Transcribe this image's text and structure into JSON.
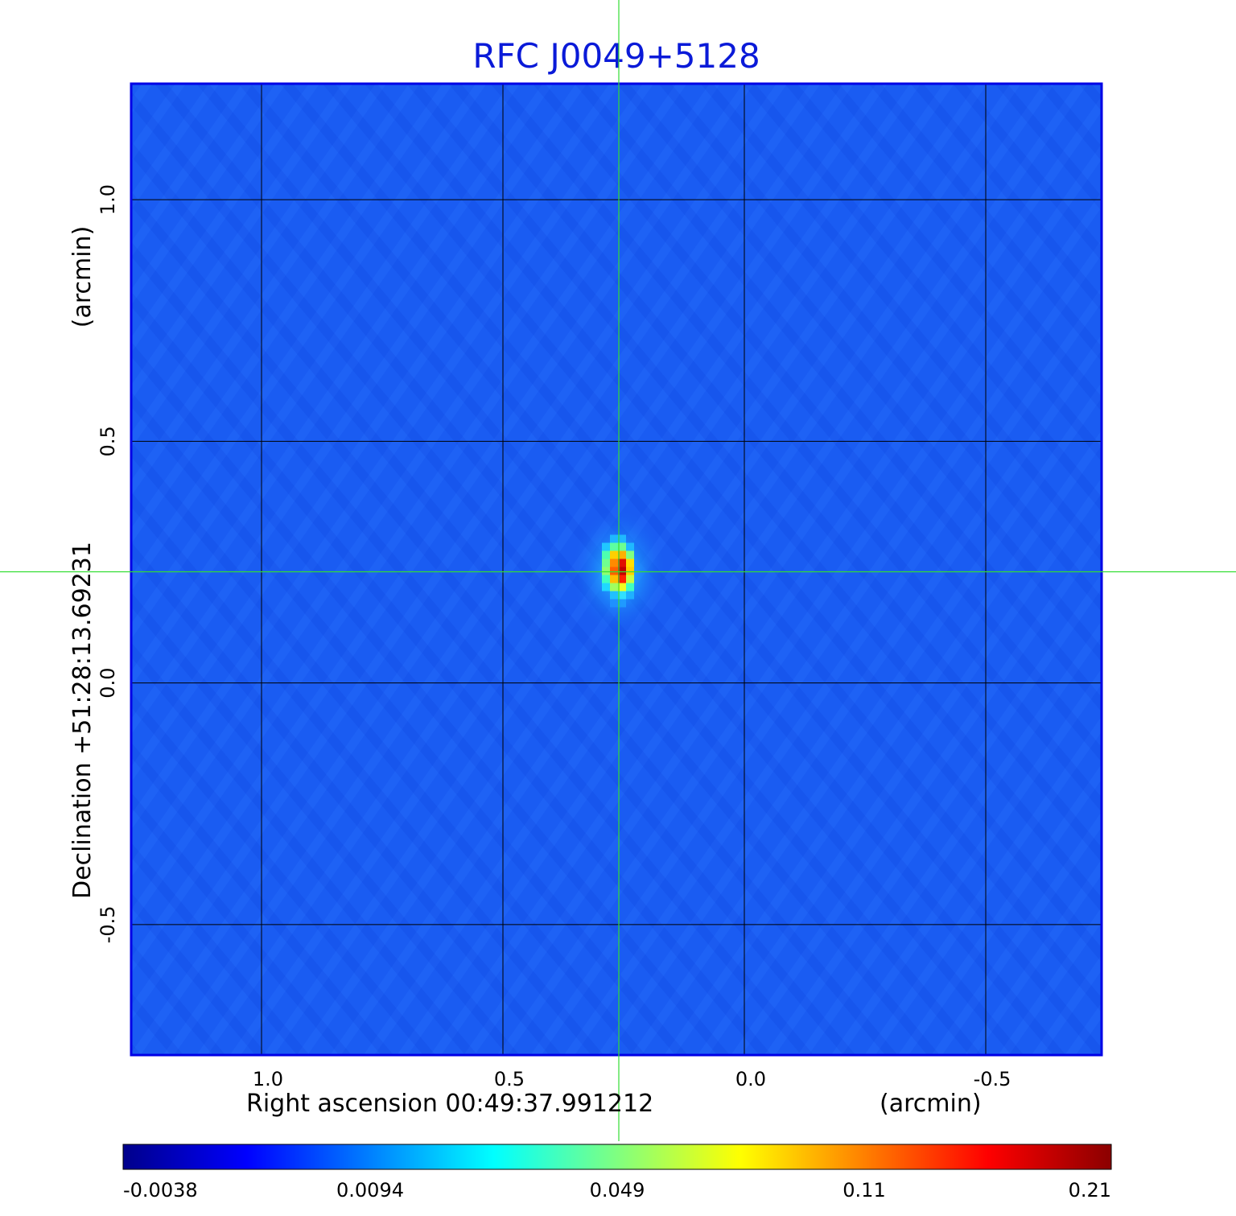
{
  "chart_data": {
    "type": "heatmap",
    "title": "RFC J0049+5128",
    "xlabel": "Right ascension  00:49:37.991212",
    "xunit": "(arcmin)",
    "ylabel": "Declination  +51:28:13.69231",
    "yunit": "(arcmin)",
    "x_ticks": [
      {
        "value": 1.0,
        "label": "1.0"
      },
      {
        "value": 0.5,
        "label": "0.5"
      },
      {
        "value": 0.0,
        "label": "0.0"
      },
      {
        "value": -0.5,
        "label": "-0.5"
      }
    ],
    "y_ticks": [
      {
        "value": 1.0,
        "label": "1.0"
      },
      {
        "value": 0.5,
        "label": "0.5"
      },
      {
        "value": 0.0,
        "label": "0.0"
      },
      {
        "value": -0.5,
        "label": "-0.5"
      }
    ],
    "xlim": [
      1.27,
      -0.74
    ],
    "ylim": [
      -0.77,
      1.24
    ],
    "x_reversed": true,
    "grid": true,
    "crosshair": {
      "x": 0.26,
      "y": 0.23
    },
    "peak": {
      "x": 0.26,
      "y": 0.23,
      "value": 0.21
    },
    "colormap": "jet",
    "colorbar": {
      "ticks": [
        "-0.0038",
        "0.0094",
        "0.049",
        "0.11",
        "0.21"
      ],
      "min": -0.0038,
      "max": 0.21,
      "colors": [
        "#00008b",
        "#0000ff",
        "#0080ff",
        "#00ffff",
        "#80ff80",
        "#ffff00",
        "#ff8000",
        "#ff0000",
        "#8b0000"
      ]
    },
    "colors": {
      "title": "#0a1ad8",
      "background_field": "#1a5cf2",
      "frame": "#0000e6",
      "crosshair": "#33dd33",
      "grid": "#000000"
    }
  }
}
